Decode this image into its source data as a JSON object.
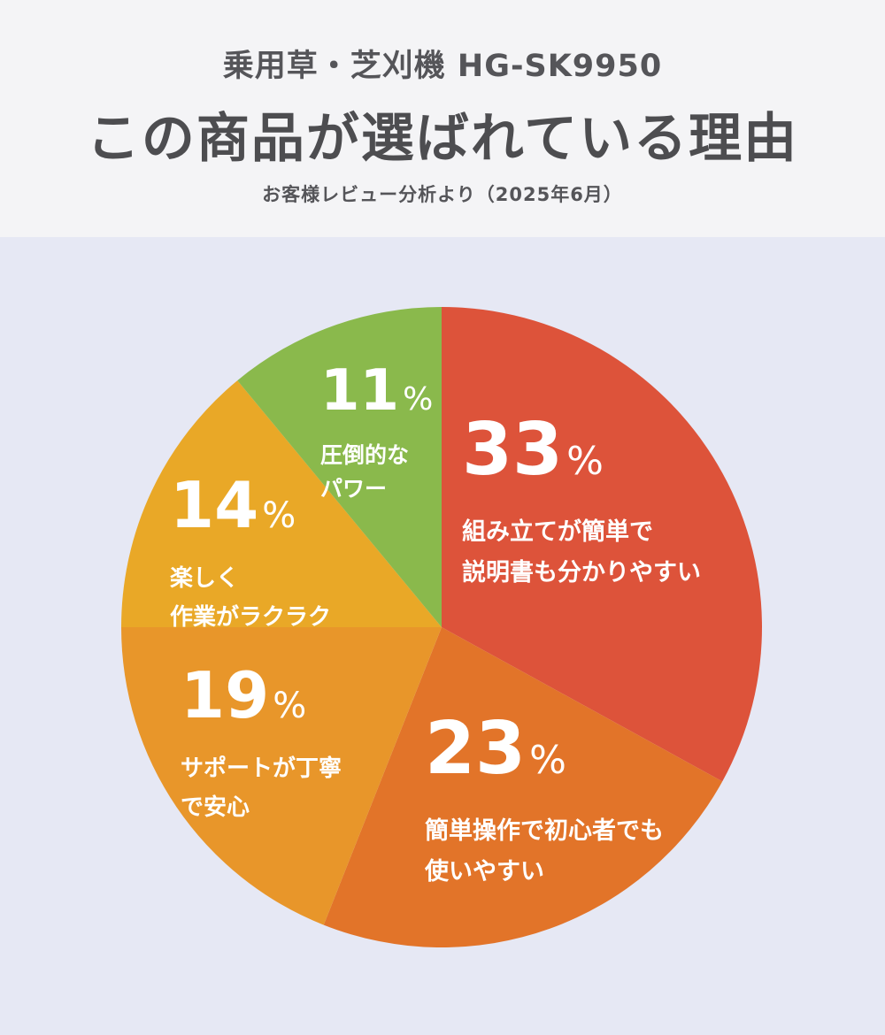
{
  "header": {
    "subtitle": "乗用草・芝刈機 HG-SK9950",
    "title": "この商品が選ばれている理由",
    "source": "お客様レビュー分析より（2025年6月）"
  },
  "chart_data": {
    "type": "pie",
    "slices": [
      {
        "value": 33,
        "label_lines": [
          "組み立てが簡単で",
          "説明書も分かりやすい"
        ],
        "color": "#dd533a"
      },
      {
        "value": 23,
        "label_lines": [
          "簡単操作で初心者でも",
          "使いやすい"
        ],
        "color": "#e27429"
      },
      {
        "value": 19,
        "label_lines": [
          "サポートが丁寧",
          "で安心"
        ],
        "color": "#e8962a"
      },
      {
        "value": 14,
        "label_lines": [
          "楽しく",
          "作業がラクラク"
        ],
        "color": "#e9a827"
      },
      {
        "value": 11,
        "label_lines": [
          "圧倒的な",
          "パワー"
        ],
        "color": "#8ab94c"
      }
    ],
    "percent_sign": "%",
    "start_angle": "top",
    "direction": "clockwise"
  }
}
